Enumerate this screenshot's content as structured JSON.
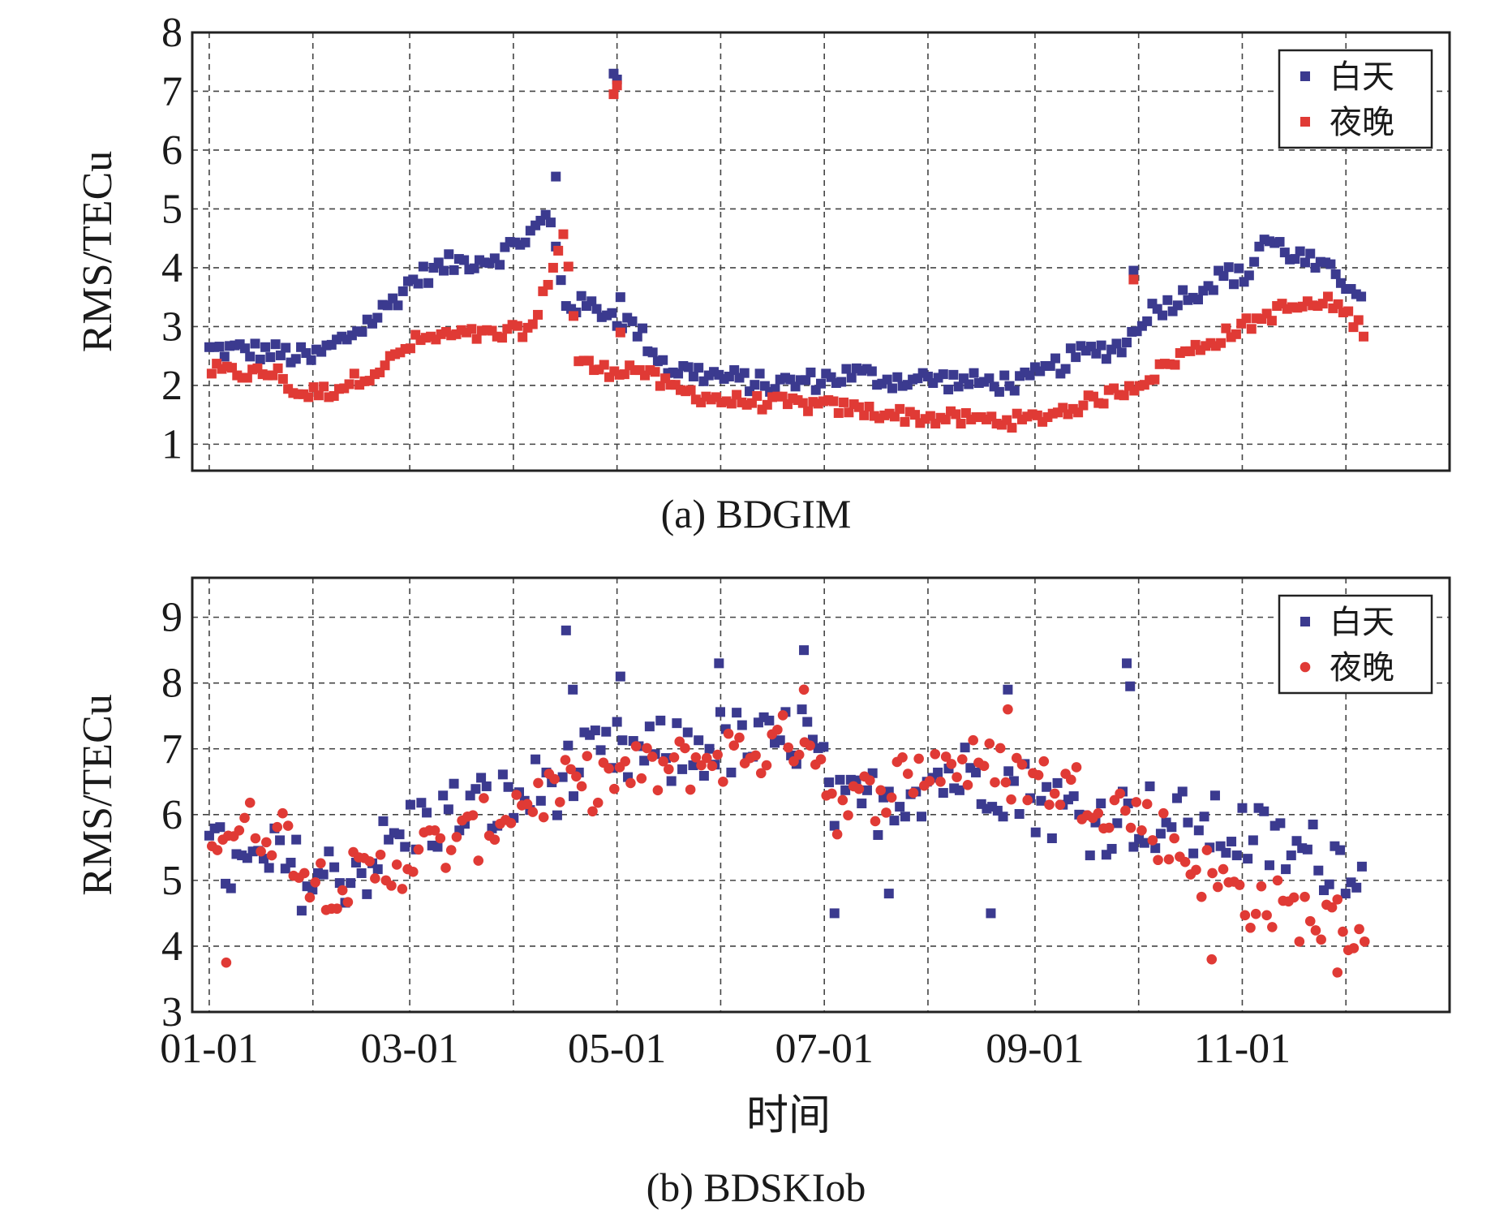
{
  "chart_data": [
    {
      "type": "scatter",
      "panel": "a",
      "caption": "(a) BDGIM",
      "ylabel": "RMS/TECu",
      "xlabel": "",
      "ylim": [
        0.55,
        8
      ],
      "yticks": [
        1,
        2,
        3,
        4,
        5,
        6,
        7,
        8
      ],
      "xlim": [
        -5,
        365
      ],
      "xtick_days": [
        0,
        59,
        120,
        181,
        243,
        304
      ],
      "xtick_labels": [
        "",
        "",
        "",
        "",
        "",
        ""
      ],
      "grid": true,
      "legend": {
        "position": "top-right",
        "entries": [
          "白天",
          "夜晚"
        ]
      },
      "series": [
        {
          "name": "白天",
          "color": "#3b3a8f",
          "marker": "square",
          "x": [],
          "y": []
        },
        {
          "name": "夜晚",
          "color": "#e03a35",
          "marker": "square",
          "x": [],
          "y": []
        }
      ]
    },
    {
      "type": "scatter",
      "panel": "b",
      "caption": "(b) BDSKIob",
      "ylabel": "RMS/TECu",
      "xlabel": "时间",
      "ylim": [
        3,
        9.6
      ],
      "yticks": [
        3,
        4,
        5,
        6,
        7,
        8,
        9
      ],
      "xlim": [
        -5,
        365
      ],
      "xtick_days": [
        0,
        59,
        120,
        181,
        243,
        304
      ],
      "xtick_labels": [
        "01-01",
        "03-01",
        "05-01",
        "07-01",
        "09-01",
        "11-01"
      ],
      "grid": true,
      "legend": {
        "position": "top-right",
        "entries": [
          "白天",
          "夜晚"
        ]
      },
      "series": [
        {
          "name": "白天",
          "color": "#3b3a8f",
          "marker": "square",
          "x": [],
          "y": []
        },
        {
          "name": "夜晚",
          "color": "#e03a35",
          "marker": "circle",
          "x": [],
          "y": []
        }
      ]
    }
  ]
}
